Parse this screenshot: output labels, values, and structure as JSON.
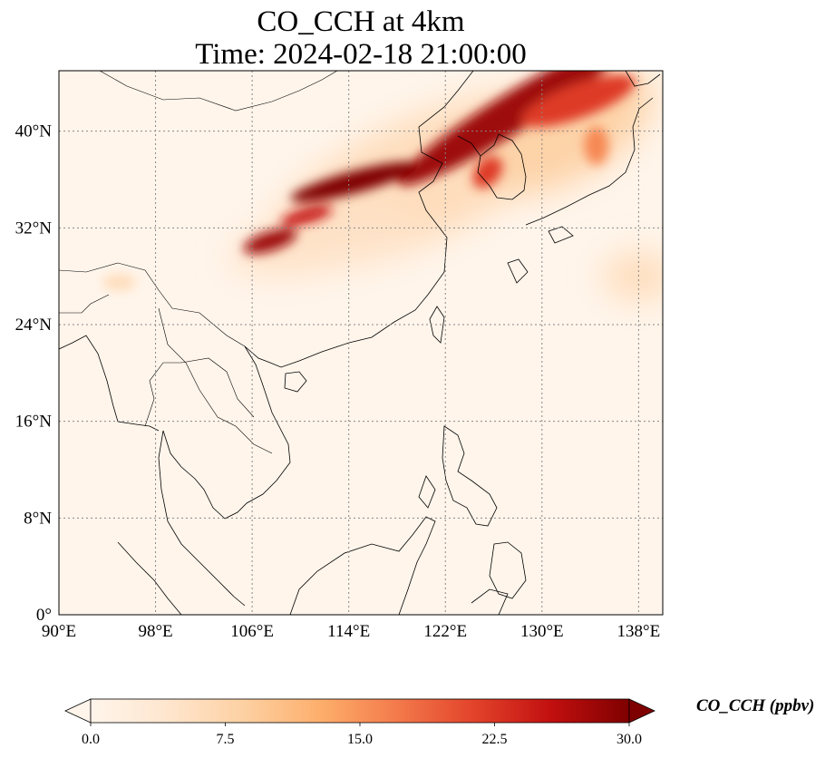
{
  "title": {
    "line1": "CO_CCH at 4km",
    "line2": "Time: 2024-02-18 21:00:00"
  },
  "map": {
    "extent": {
      "lon": [
        90,
        140
      ],
      "lat": [
        0,
        45
      ]
    },
    "lon_ticks": [
      {
        "value": 90,
        "label": "90°E"
      },
      {
        "value": 98,
        "label": "98°E"
      },
      {
        "value": 106,
        "label": "106°E"
      },
      {
        "value": 114,
        "label": "114°E"
      },
      {
        "value": 122,
        "label": "122°E"
      },
      {
        "value": 130,
        "label": "130°E"
      },
      {
        "value": 138,
        "label": "138°E"
      }
    ],
    "lat_ticks": [
      {
        "value": 0,
        "label": "0°"
      },
      {
        "value": 8,
        "label": "8°N"
      },
      {
        "value": 16,
        "label": "16°N"
      },
      {
        "value": 24,
        "label": "24°N"
      },
      {
        "value": 32,
        "label": "32°N"
      },
      {
        "value": 40,
        "label": "40°N"
      }
    ],
    "gridlines": true,
    "background_color": "#fff5eb",
    "plumes": [
      {
        "name": "northeast-plume",
        "lon": 127.5,
        "lat": 41.5,
        "rx": 11,
        "ry": 1.6,
        "rot": -32,
        "value": 28
      },
      {
        "name": "korea-japan-sea-plume",
        "lon": 133,
        "lat": 42.5,
        "rx": 5,
        "ry": 1.4,
        "rot": -20,
        "value": 22
      },
      {
        "name": "yellow-sea-plume",
        "lon": 125.5,
        "lat": 36.6,
        "rx": 1.5,
        "ry": 1.0,
        "rot": -50,
        "value": 22
      },
      {
        "name": "north-china-plume",
        "lon": 114.5,
        "lat": 35.8,
        "rx": 5.5,
        "ry": 0.9,
        "rot": -15,
        "value": 30
      },
      {
        "name": "central-china-plume-1",
        "lon": 110.5,
        "lat": 33.0,
        "rx": 2.2,
        "ry": 0.6,
        "rot": -15,
        "value": 25
      },
      {
        "name": "central-china-plume-2",
        "lon": 107.5,
        "lat": 30.9,
        "rx": 2.3,
        "ry": 0.8,
        "rot": -18,
        "value": 28
      },
      {
        "name": "japan-plume",
        "lon": 134.5,
        "lat": 38.8,
        "rx": 1.0,
        "ry": 1.6,
        "rot": 0,
        "value": 16
      },
      {
        "name": "myanmar-patch",
        "lon": 95.0,
        "lat": 27.5,
        "rx": 1.4,
        "ry": 0.7,
        "rot": 0,
        "value": 6
      }
    ],
    "haze": [
      {
        "lon": 120,
        "lat": 36,
        "rx": 14,
        "ry": 5,
        "rot": -25,
        "value": 6
      },
      {
        "lon": 132,
        "lat": 40,
        "rx": 8,
        "ry": 4,
        "rot": -30,
        "value": 8
      },
      {
        "lon": 112,
        "lat": 31,
        "rx": 8,
        "ry": 2.5,
        "rot": -12,
        "value": 5
      },
      {
        "lon": 138,
        "lat": 28,
        "rx": 3,
        "ry": 2,
        "rot": 0,
        "value": 6
      }
    ]
  },
  "colorbar": {
    "label": "CO_CCH (ppbv)",
    "min": 0,
    "max": 30,
    "ticks": [
      {
        "value": 0,
        "label": "0.0"
      },
      {
        "value": 7.5,
        "label": "7.5"
      },
      {
        "value": 15,
        "label": "15.0"
      },
      {
        "value": 22.5,
        "label": "22.5"
      },
      {
        "value": 30,
        "label": "30.0"
      }
    ],
    "colormap": [
      "#fff5eb",
      "#fee6ce",
      "#fdd0a2",
      "#fdae6b",
      "#f3794a",
      "#e2422a",
      "#c10f0f",
      "#7f0000"
    ],
    "extend": "both"
  }
}
